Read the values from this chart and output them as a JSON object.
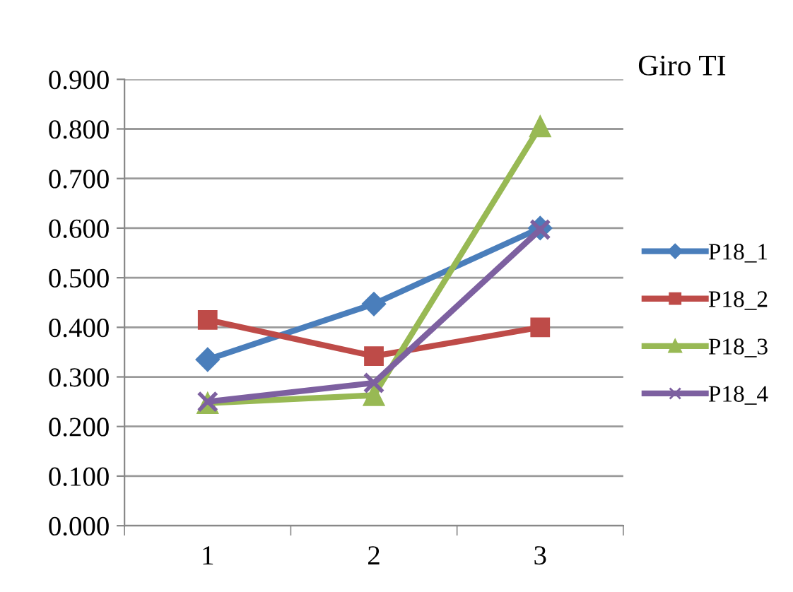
{
  "chart_data": {
    "type": "line",
    "title": "Giro TI",
    "categories": [
      "1",
      "2",
      "3"
    ],
    "series": [
      {
        "name": "P18_1",
        "color": "#4a7ebb",
        "marker": "diamond",
        "values": [
          0.335,
          0.447,
          0.6
        ]
      },
      {
        "name": "P18_2",
        "color": "#be4b48",
        "marker": "square",
        "values": [
          0.415,
          0.342,
          0.4
        ]
      },
      {
        "name": "P18_3",
        "color": "#98b954",
        "marker": "triangle",
        "values": [
          0.247,
          0.263,
          0.805
        ]
      },
      {
        "name": "P18_4",
        "color": "#7d60a0",
        "marker": "cross",
        "values": [
          0.25,
          0.288,
          0.597
        ]
      }
    ],
    "ylim": [
      0,
      0.9
    ],
    "yticks": [
      {
        "value": 0,
        "label": "0.000"
      },
      {
        "value": 0.1,
        "label": "0.100"
      },
      {
        "value": 0.2,
        "label": "0.200"
      },
      {
        "value": 0.3,
        "label": "0.300"
      },
      {
        "value": 0.4,
        "label": "0.400"
      },
      {
        "value": 0.5,
        "label": "0.500"
      },
      {
        "value": 0.6,
        "label": "0.600"
      },
      {
        "value": 0.7,
        "label": "0.700"
      },
      {
        "value": 0.8,
        "label": "0.800"
      },
      {
        "value": 0.9,
        "label": "0.900"
      }
    ],
    "grid": "y",
    "legend": "right",
    "line_style": "solid"
  }
}
